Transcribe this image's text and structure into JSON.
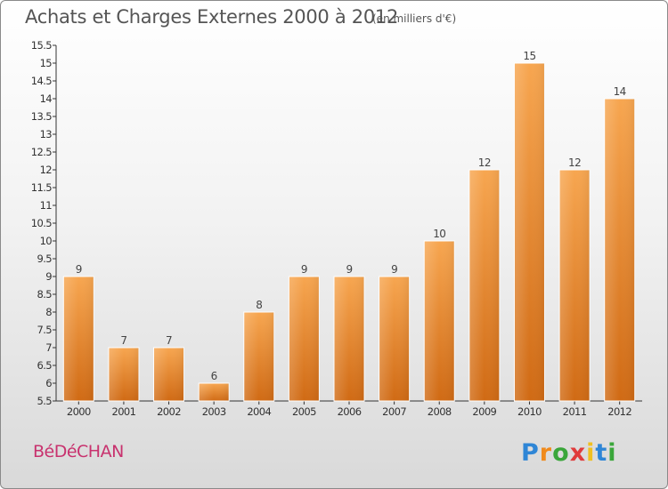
{
  "header": {
    "title": "Achats et Charges Externes 2000 à 2012",
    "subtitle": "(en milliers d'€)"
  },
  "footer": {
    "commune": "BéDéCHAN",
    "logo_text": "Proxiti"
  },
  "colors": {
    "bar_top": "#f7a650",
    "bar_bottom": "#d06a14",
    "title": "#555555",
    "commune": "#c8326e"
  },
  "chart_data": {
    "type": "bar",
    "title": "Achats et Charges Externes 2000 à 2012",
    "subtitle": "(en milliers d'€)",
    "categories": [
      "2000",
      "2001",
      "2002",
      "2003",
      "2004",
      "2005",
      "2006",
      "2007",
      "2008",
      "2009",
      "2010",
      "2011",
      "2012"
    ],
    "values": [
      9,
      7,
      7,
      6,
      8,
      9,
      9,
      9,
      10,
      12,
      15,
      12,
      14
    ],
    "value_labels": [
      "9",
      "7",
      "7",
      "6",
      "8",
      "9",
      "9",
      "9",
      "10",
      "12",
      "15",
      "12",
      "14"
    ],
    "ylim": [
      5.5,
      15.5
    ],
    "yticks": [
      5.5,
      6,
      6.5,
      7,
      7.5,
      8,
      8.5,
      9,
      9.5,
      10,
      10.5,
      11,
      11.5,
      12,
      12.5,
      13,
      13.5,
      14,
      14.5,
      15,
      15.5
    ],
    "ytick_labels": [
      "5.5",
      "6",
      "6.5",
      "7",
      "7.5",
      "8",
      "8.5",
      "9",
      "9.5",
      "10",
      "10.5",
      "11",
      "11.5",
      "12",
      "12.5",
      "13",
      "13.5",
      "14",
      "14.5",
      "15",
      "15.5"
    ],
    "grid": false,
    "legend": "none"
  }
}
